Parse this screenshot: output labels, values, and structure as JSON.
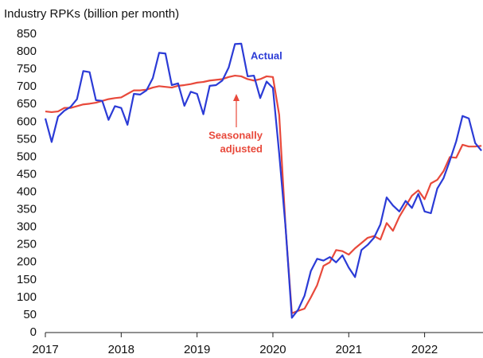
{
  "chart_data": {
    "type": "line",
    "title": "Industry RPKs (billion per month)",
    "x": [
      2017,
      2017.083,
      2017.167,
      2017.25,
      2017.333,
      2017.417,
      2017.5,
      2017.583,
      2017.667,
      2017.75,
      2017.833,
      2017.917,
      2018,
      2018.083,
      2018.167,
      2018.25,
      2018.333,
      2018.417,
      2018.5,
      2018.583,
      2018.667,
      2018.75,
      2018.833,
      2018.917,
      2019,
      2019.083,
      2019.167,
      2019.25,
      2019.333,
      2019.417,
      2019.5,
      2019.583,
      2019.667,
      2019.75,
      2019.833,
      2019.917,
      2020,
      2020.083,
      2020.167,
      2020.25,
      2020.333,
      2020.417,
      2020.5,
      2020.583,
      2020.667,
      2020.75,
      2020.833,
      2020.917,
      2021,
      2021.083,
      2021.167,
      2021.25,
      2021.333,
      2021.417,
      2021.5,
      2021.583,
      2021.667,
      2021.75,
      2021.833,
      2021.917,
      2022,
      2022.083,
      2022.167,
      2022.25,
      2022.333,
      2022.417,
      2022.5,
      2022.583,
      2022.667,
      2022.75
    ],
    "series": [
      {
        "name": "Actual",
        "color": "#2b3bd6",
        "values": [
          610,
          543,
          615,
          632,
          643,
          665,
          745,
          742,
          662,
          660,
          606,
          645,
          640,
          592,
          680,
          678,
          690,
          725,
          797,
          795,
          705,
          710,
          646,
          686,
          680,
          622,
          703,
          705,
          718,
          755,
          822,
          823,
          730,
          732,
          668,
          715,
          697,
          510,
          300,
          42,
          65,
          105,
          175,
          210,
          205,
          215,
          200,
          220,
          185,
          158,
          235,
          250,
          270,
          308,
          385,
          362,
          345,
          375,
          355,
          395,
          345,
          340,
          410,
          440,
          490,
          545,
          617,
          610,
          540,
          518
        ]
      },
      {
        "name": "Seasonally adjusted",
        "color": "#e8493b",
        "values": [
          630,
          628,
          630,
          640,
          640,
          645,
          650,
          652,
          655,
          660,
          665,
          668,
          670,
          680,
          690,
          690,
          692,
          698,
          702,
          700,
          698,
          703,
          705,
          708,
          712,
          714,
          718,
          720,
          722,
          728,
          732,
          730,
          722,
          718,
          722,
          730,
          728,
          620,
          300,
          55,
          62,
          68,
          100,
          135,
          190,
          200,
          235,
          232,
          222,
          240,
          255,
          270,
          275,
          265,
          312,
          290,
          330,
          360,
          390,
          405,
          380,
          425,
          435,
          460,
          500,
          498,
          535,
          530,
          530,
          532
        ]
      }
    ],
    "annotations": [
      {
        "text": "Actual"
      },
      {
        "lines": [
          "Seasonally",
          "adjusted"
        ]
      }
    ],
    "xlim": [
      2017,
      2022.77
    ],
    "xticks": [
      2017,
      2018,
      2019,
      2020,
      2021,
      2022
    ],
    "ylim": [
      0,
      850
    ],
    "yticks": [
      0,
      50,
      100,
      150,
      200,
      250,
      300,
      350,
      400,
      450,
      500,
      550,
      600,
      650,
      700,
      750,
      800,
      850
    ]
  }
}
